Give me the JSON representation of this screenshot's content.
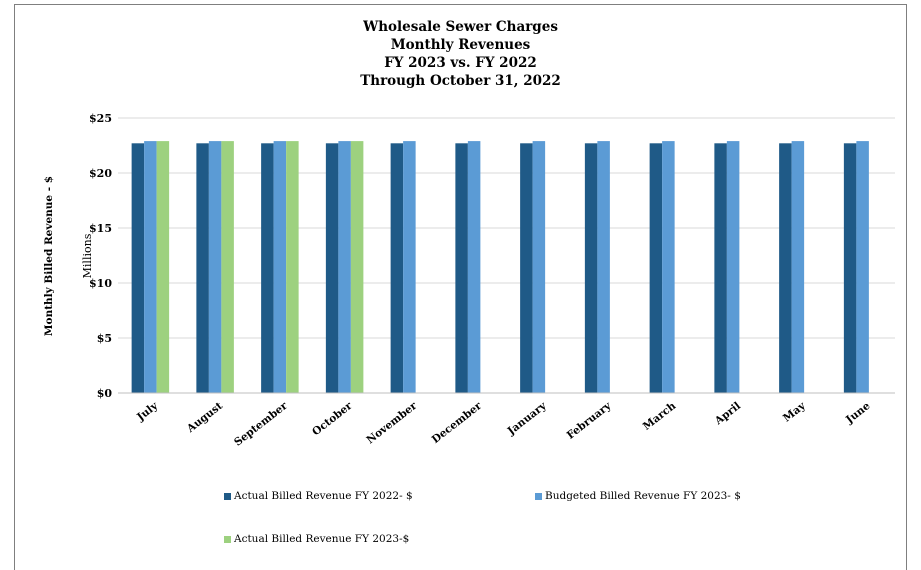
{
  "chart_data": {
    "type": "bar",
    "title_lines": [
      "Wholesale Sewer Charges",
      "Monthly Revenues",
      "FY 2023 vs. FY 2022",
      "Through October 31, 2022"
    ],
    "ylabel": "Monthly Billed Revenue - $",
    "yunit_label": "Millions",
    "ylim": [
      0,
      25
    ],
    "yticks": [
      0,
      5,
      10,
      15,
      20,
      25
    ],
    "ytick_labels": [
      "$0",
      "$5",
      "$10",
      "$15",
      "$20",
      "$25"
    ],
    "grid": true,
    "legend_position": "bottom",
    "categories": [
      "July",
      "August",
      "September",
      "October",
      "November",
      "December",
      "January",
      "February",
      "March",
      "April",
      "May",
      "June"
    ],
    "series": [
      {
        "name": "Actual Billed Revenue FY 2022- $",
        "color": "#1f5a87",
        "values": [
          22.7,
          22.7,
          22.7,
          22.7,
          22.7,
          22.7,
          22.7,
          22.7,
          22.7,
          22.7,
          22.7,
          22.7
        ]
      },
      {
        "name": "Budgeted Billed Revenue FY 2023- $",
        "color": "#5b9bd5",
        "values": [
          22.9,
          22.9,
          22.9,
          22.9,
          22.9,
          22.9,
          22.9,
          22.9,
          22.9,
          22.9,
          22.9,
          22.9
        ]
      },
      {
        "name": "Actual Billed Revenue FY 2023-$",
        "color": "#9dd17f",
        "values": [
          22.9,
          22.9,
          22.9,
          22.9,
          null,
          null,
          null,
          null,
          null,
          null,
          null,
          null
        ]
      }
    ]
  }
}
